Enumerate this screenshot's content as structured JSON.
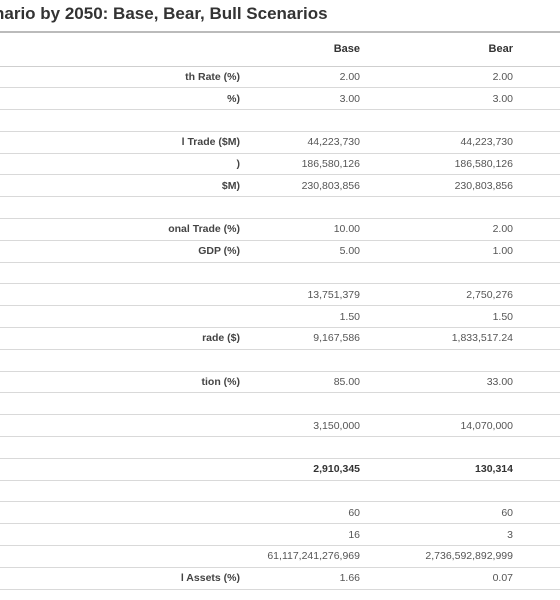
{
  "title": "nario by 2050: Base, Bear, Bull Scenarios",
  "columns": {
    "label": "",
    "base": "Base",
    "bear": "Bear",
    "bull": ""
  },
  "rows": [
    {
      "label": "th Rate (%)",
      "base": "2.00",
      "bear": "2.00",
      "bold": false
    },
    {
      "label": "%)",
      "base": "3.00",
      "bear": "3.00",
      "bold": false
    },
    {
      "label": "",
      "base": "",
      "bear": "",
      "bold": false
    },
    {
      "label": "l Trade ($M)",
      "base": "44,223,730",
      "bear": "44,223,730",
      "bold": false
    },
    {
      "label": ")",
      "base": "186,580,126",
      "bear": "186,580,126",
      "bold": false
    },
    {
      "label": "$M)",
      "base": "230,803,856",
      "bear": "230,803,856",
      "bold": false
    },
    {
      "label": "",
      "base": "",
      "bear": "",
      "bold": false
    },
    {
      "label": "onal Trade (%)",
      "base": "10.00",
      "bear": "2.00",
      "bold": false
    },
    {
      "label": "GDP (%)",
      "base": "5.00",
      "bear": "1.00",
      "bold": false
    },
    {
      "label": "",
      "base": "",
      "bear": "",
      "bold": false
    },
    {
      "label": "",
      "base": "13,751,379",
      "bear": "2,750,276",
      "bold": false
    },
    {
      "label": "",
      "base": "1.50",
      "bear": "1.50",
      "bold": false
    },
    {
      "label": "rade ($)",
      "base": "9,167,586",
      "bear": "1,833,517.24",
      "bold": false
    },
    {
      "label": "",
      "base": "",
      "bear": "",
      "bold": false
    },
    {
      "label": "tion (%)",
      "base": "85.00",
      "bear": "33.00",
      "bold": false
    },
    {
      "label": "",
      "base": "",
      "bear": "",
      "bold": false
    },
    {
      "label": "",
      "base": "3,150,000",
      "bear": "14,070,000",
      "bold": false
    },
    {
      "label": "",
      "base": "",
      "bear": "",
      "bold": false
    },
    {
      "label": "",
      "base": "2,910,345",
      "bear": "130,314",
      "bold": true
    },
    {
      "label": "",
      "base": "",
      "bear": "",
      "bold": false
    },
    {
      "label": "",
      "base": "60",
      "bear": "60",
      "bold": false
    },
    {
      "label": "",
      "base": "16",
      "bear": "3",
      "bold": false
    },
    {
      "label": "",
      "base": "61,117,241,276,969",
      "bear": "2,736,592,892,999",
      "bold": false
    },
    {
      "label": "l Assets (%)",
      "base": "1.66",
      "bear": "0.07",
      "bold": false
    }
  ]
}
